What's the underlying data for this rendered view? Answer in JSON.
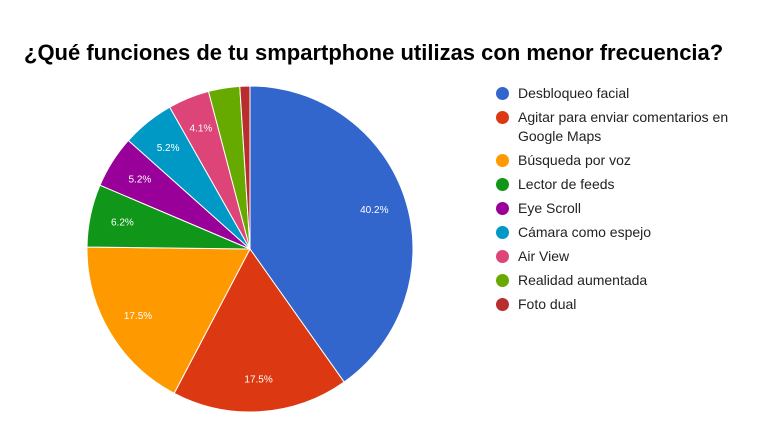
{
  "title": "¿Qué funciones de tu smpartphone utilizas con menor frecuencia?",
  "chart_data": {
    "type": "pie",
    "title": "¿Qué funciones de tu smpartphone utilizas con menor frecuencia?",
    "legend_position": "right",
    "start_angle_deg": 0,
    "direction": "clockwise",
    "slices": [
      {
        "label": "Desbloqueo facial",
        "value": 40.2,
        "display": "40.2%",
        "color": "#3366cc"
      },
      {
        "label": "Agitar para enviar comentarios en Google Maps",
        "value": 17.5,
        "display": "17.5%",
        "color": "#dc3912"
      },
      {
        "label": "Búsqueda por voz",
        "value": 17.5,
        "display": "17.5%",
        "color": "#ff9900"
      },
      {
        "label": "Lector de feeds",
        "value": 6.2,
        "display": "6.2%",
        "color": "#109618"
      },
      {
        "label": "Eye Scroll",
        "value": 5.2,
        "display": "5.2%",
        "color": "#990099"
      },
      {
        "label": "Cámara como espejo",
        "value": 5.2,
        "display": "5.2%",
        "color": "#0099c6"
      },
      {
        "label": "Air View",
        "value": 4.1,
        "display": "4.1%",
        "color": "#dd4477"
      },
      {
        "label": "Realidad aumentada",
        "value": 3.1,
        "display": "",
        "color": "#66aa00"
      },
      {
        "label": "Foto dual",
        "value": 1.0,
        "display": "",
        "color": "#b82e2e"
      }
    ]
  }
}
